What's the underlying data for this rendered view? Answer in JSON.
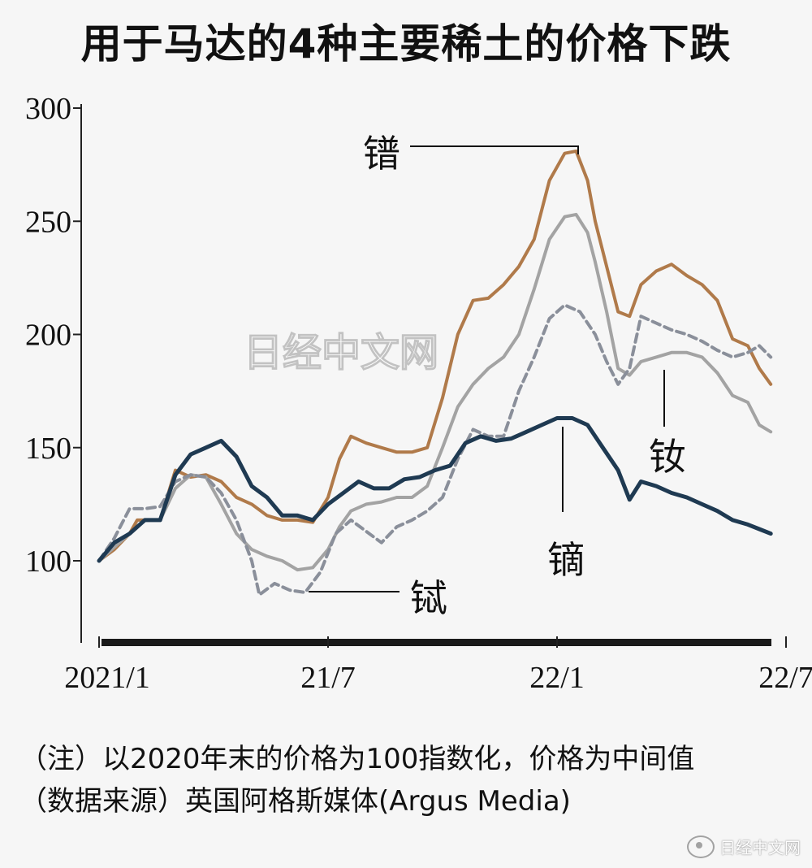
{
  "title": "用于马达的4种主要稀土的价格下跌",
  "notes": {
    "line1": "（注）以2020年末的价格为100指数化，价格为中间值",
    "line2": "（数据来源）英国阿格斯媒体(Argus Media)"
  },
  "watermarks": {
    "center": "日经中文网",
    "footer": "日经中文网"
  },
  "chart_data": {
    "type": "line",
    "title": "用于马达的4种主要稀土的价格下跌",
    "xlabel": "",
    "ylabel": "",
    "x_ticks": [
      "2021/1",
      "21/7",
      "22/1",
      "22/7"
    ],
    "y_ticks": [
      100,
      150,
      200,
      250,
      300
    ],
    "ylim": [
      60,
      300
    ],
    "grid": false,
    "series": [
      {
        "name": "镨",
        "color": "#b07a4a",
        "style": "solid",
        "points": [
          [
            0,
            100
          ],
          [
            0.4,
            105
          ],
          [
            0.8,
            112
          ],
          [
            1.0,
            118
          ],
          [
            1.6,
            118
          ],
          [
            2.0,
            140
          ],
          [
            2.4,
            137
          ],
          [
            2.8,
            138
          ],
          [
            3.2,
            135
          ],
          [
            3.6,
            128
          ],
          [
            4.0,
            125
          ],
          [
            4.4,
            120
          ],
          [
            4.8,
            118
          ],
          [
            5.2,
            118
          ],
          [
            5.6,
            117
          ],
          [
            6.0,
            128
          ],
          [
            6.3,
            145
          ],
          [
            6.6,
            155
          ],
          [
            7.0,
            152
          ],
          [
            7.4,
            150
          ],
          [
            7.8,
            148
          ],
          [
            8.2,
            148
          ],
          [
            8.6,
            150
          ],
          [
            9.0,
            172
          ],
          [
            9.4,
            200
          ],
          [
            9.8,
            215
          ],
          [
            10.2,
            216
          ],
          [
            10.6,
            222
          ],
          [
            11.0,
            230
          ],
          [
            11.4,
            242
          ],
          [
            11.8,
            268
          ],
          [
            12.2,
            280
          ],
          [
            12.5,
            281
          ],
          [
            12.8,
            268
          ],
          [
            13.0,
            250
          ],
          [
            13.3,
            230
          ],
          [
            13.6,
            210
          ],
          [
            13.9,
            208
          ],
          [
            14.2,
            222
          ],
          [
            14.6,
            228
          ],
          [
            15.0,
            231
          ],
          [
            15.4,
            226
          ],
          [
            15.8,
            222
          ],
          [
            16.2,
            215
          ],
          [
            16.6,
            198
          ],
          [
            17.0,
            195
          ],
          [
            17.3,
            185
          ],
          [
            17.6,
            178
          ]
        ]
      },
      {
        "name": "钕",
        "color": "#a3a3a3",
        "style": "solid",
        "points": [
          [
            0,
            100
          ],
          [
            0.4,
            106
          ],
          [
            0.8,
            112
          ],
          [
            1.2,
            118
          ],
          [
            1.6,
            118
          ],
          [
            2.0,
            132
          ],
          [
            2.4,
            138
          ],
          [
            2.8,
            137
          ],
          [
            3.2,
            125
          ],
          [
            3.6,
            112
          ],
          [
            4.0,
            105
          ],
          [
            4.4,
            102
          ],
          [
            4.8,
            100
          ],
          [
            5.2,
            96
          ],
          [
            5.6,
            97
          ],
          [
            6.0,
            105
          ],
          [
            6.3,
            115
          ],
          [
            6.6,
            122
          ],
          [
            7.0,
            125
          ],
          [
            7.4,
            126
          ],
          [
            7.8,
            128
          ],
          [
            8.2,
            128
          ],
          [
            8.6,
            133
          ],
          [
            9.0,
            150
          ],
          [
            9.4,
            168
          ],
          [
            9.8,
            178
          ],
          [
            10.2,
            185
          ],
          [
            10.6,
            190
          ],
          [
            11.0,
            200
          ],
          [
            11.4,
            220
          ],
          [
            11.8,
            242
          ],
          [
            12.2,
            252
          ],
          [
            12.5,
            253
          ],
          [
            12.8,
            245
          ],
          [
            13.0,
            232
          ],
          [
            13.3,
            210
          ],
          [
            13.6,
            185
          ],
          [
            13.9,
            182
          ],
          [
            14.2,
            188
          ],
          [
            14.6,
            190
          ],
          [
            15.0,
            192
          ],
          [
            15.4,
            192
          ],
          [
            15.8,
            190
          ],
          [
            16.2,
            183
          ],
          [
            16.6,
            173
          ],
          [
            17.0,
            170
          ],
          [
            17.3,
            160
          ],
          [
            17.6,
            157
          ]
        ]
      },
      {
        "name": "铽",
        "color": "#8a8f9a",
        "style": "dashed",
        "points": [
          [
            0,
            100
          ],
          [
            0.4,
            110
          ],
          [
            0.8,
            123
          ],
          [
            1.2,
            123
          ],
          [
            1.6,
            124
          ],
          [
            2.0,
            135
          ],
          [
            2.4,
            138
          ],
          [
            2.8,
            137
          ],
          [
            3.2,
            130
          ],
          [
            3.6,
            118
          ],
          [
            4.0,
            100
          ],
          [
            4.2,
            85
          ],
          [
            4.6,
            90
          ],
          [
            5.0,
            87
          ],
          [
            5.4,
            86
          ],
          [
            5.8,
            95
          ],
          [
            6.2,
            112
          ],
          [
            6.6,
            118
          ],
          [
            7.0,
            113
          ],
          [
            7.4,
            108
          ],
          [
            7.8,
            115
          ],
          [
            8.2,
            118
          ],
          [
            8.6,
            122
          ],
          [
            9.0,
            128
          ],
          [
            9.4,
            145
          ],
          [
            9.8,
            158
          ],
          [
            10.2,
            155
          ],
          [
            10.6,
            155
          ],
          [
            11.0,
            175
          ],
          [
            11.4,
            190
          ],
          [
            11.8,
            207
          ],
          [
            12.2,
            213
          ],
          [
            12.6,
            210
          ],
          [
            13.0,
            200
          ],
          [
            13.3,
            188
          ],
          [
            13.6,
            178
          ],
          [
            13.9,
            185
          ],
          [
            14.2,
            208
          ],
          [
            14.6,
            205
          ],
          [
            15.0,
            202
          ],
          [
            15.4,
            200
          ],
          [
            15.8,
            197
          ],
          [
            16.2,
            193
          ],
          [
            16.6,
            190
          ],
          [
            17.0,
            192
          ],
          [
            17.3,
            195
          ],
          [
            17.6,
            190
          ]
        ]
      },
      {
        "name": "镝",
        "color": "#1f3a52",
        "style": "solid",
        "points": [
          [
            0,
            100
          ],
          [
            0.4,
            108
          ],
          [
            0.8,
            112
          ],
          [
            1.2,
            118
          ],
          [
            1.6,
            118
          ],
          [
            2.0,
            138
          ],
          [
            2.4,
            147
          ],
          [
            2.8,
            150
          ],
          [
            3.2,
            153
          ],
          [
            3.6,
            146
          ],
          [
            4.0,
            133
          ],
          [
            4.4,
            128
          ],
          [
            4.8,
            120
          ],
          [
            5.2,
            120
          ],
          [
            5.6,
            118
          ],
          [
            6.0,
            125
          ],
          [
            6.4,
            130
          ],
          [
            6.8,
            135
          ],
          [
            7.2,
            132
          ],
          [
            7.6,
            132
          ],
          [
            8.0,
            136
          ],
          [
            8.4,
            137
          ],
          [
            8.8,
            140
          ],
          [
            9.2,
            142
          ],
          [
            9.6,
            152
          ],
          [
            10.0,
            155
          ],
          [
            10.4,
            153
          ],
          [
            10.8,
            154
          ],
          [
            11.2,
            157
          ],
          [
            11.6,
            160
          ],
          [
            12.0,
            163
          ],
          [
            12.4,
            163
          ],
          [
            12.8,
            160
          ],
          [
            13.2,
            150
          ],
          [
            13.6,
            140
          ],
          [
            13.9,
            127
          ],
          [
            14.2,
            135
          ],
          [
            14.6,
            133
          ],
          [
            15.0,
            130
          ],
          [
            15.4,
            128
          ],
          [
            15.8,
            125
          ],
          [
            16.2,
            122
          ],
          [
            16.6,
            118
          ],
          [
            17.0,
            116
          ],
          [
            17.3,
            114
          ],
          [
            17.6,
            112
          ]
        ]
      }
    ],
    "labels": [
      "镨",
      "钕",
      "铽",
      "镝"
    ]
  }
}
